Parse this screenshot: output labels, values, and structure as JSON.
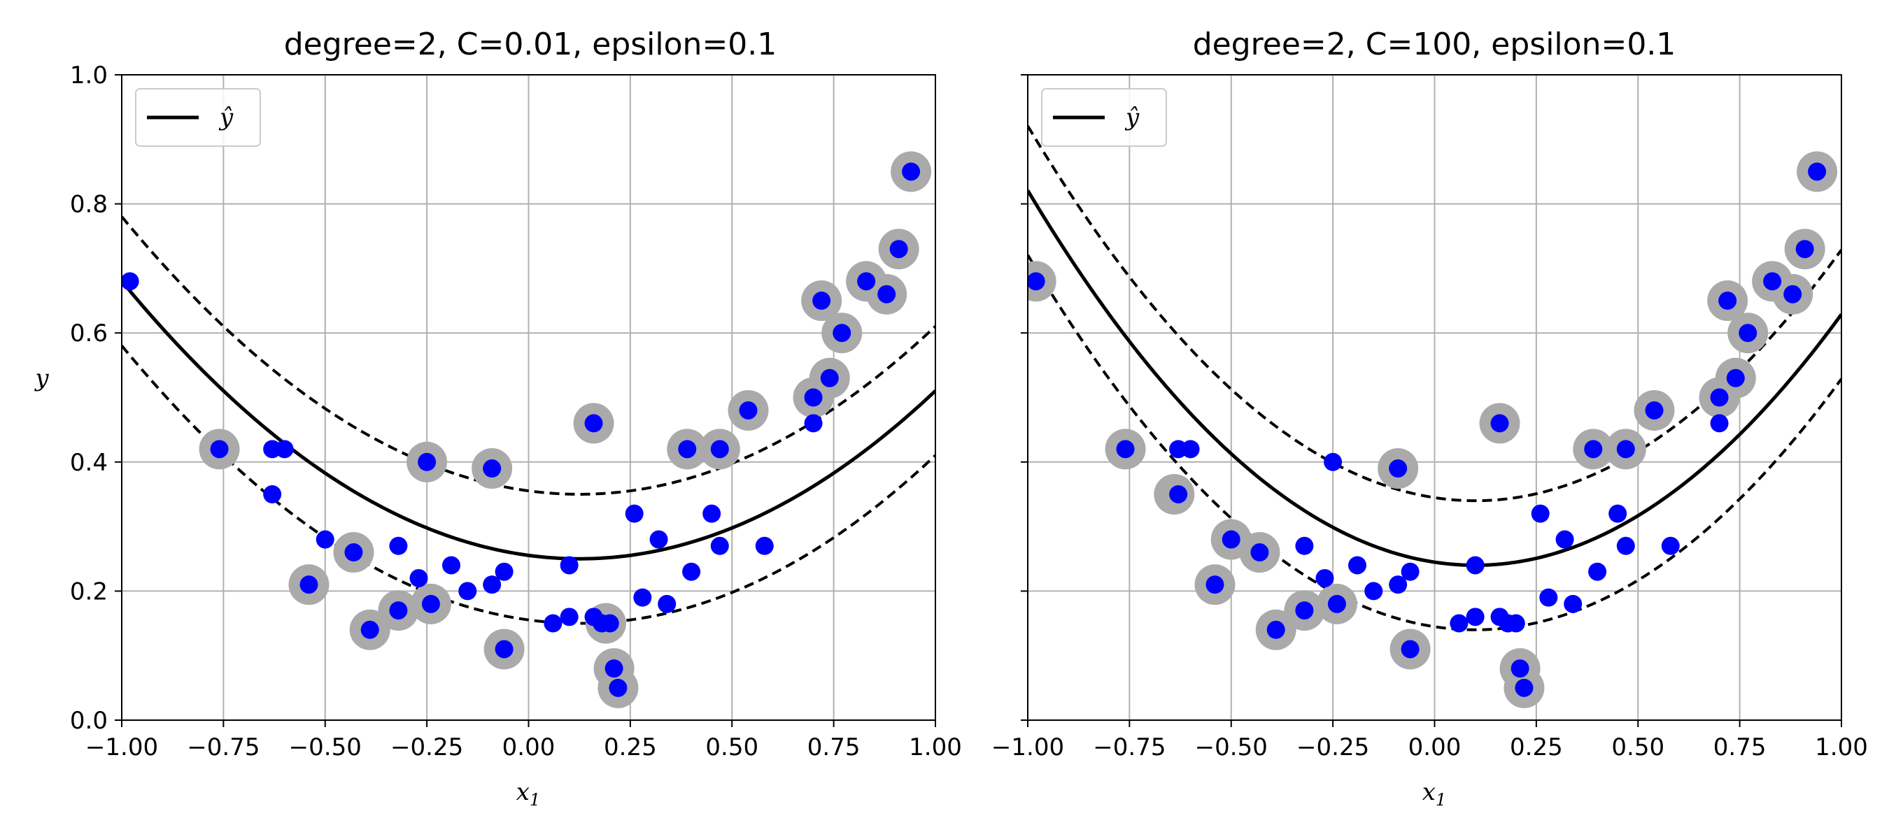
{
  "chart_data": [
    {
      "type": "line",
      "title": "degree=2, C=0.01, epsilon=0.1",
      "xlabel": "x",
      "xlabel_sub": "1",
      "ylabel": "y",
      "xlim": [
        -1.0,
        1.0
      ],
      "ylim": [
        0.0,
        1.0
      ],
      "xticks": [
        -1.0,
        -0.75,
        -0.5,
        -0.25,
        0.0,
        0.25,
        0.5,
        0.75,
        1.0
      ],
      "xtick_labels": [
        "−1.00",
        "−0.75",
        "−0.50",
        "−0.25",
        "0.00",
        "0.25",
        "0.50",
        "0.75",
        "1.00"
      ],
      "yticks": [
        0.0,
        0.2,
        0.4,
        0.6,
        0.8,
        1.0
      ],
      "ytick_labels": [
        "0.0",
        "0.2",
        "0.4",
        "0.6",
        "0.8",
        "1.0"
      ],
      "show_ytick_labels": true,
      "grid": true,
      "legend": {
        "position": "top-left",
        "entries": [
          {
            "label": "ŷ",
            "style": "solid",
            "color": "#000000"
          }
        ]
      },
      "curve": {
        "vertex_x": 0.125,
        "vertex_y": 0.25,
        "a": 0.34,
        "epsilon": 0.1
      },
      "points": [
        {
          "x": -0.98,
          "y": 0.68
        },
        {
          "x": -0.76,
          "y": 0.42
        },
        {
          "x": -0.63,
          "y": 0.42
        },
        {
          "x": -0.6,
          "y": 0.42
        },
        {
          "x": -0.63,
          "y": 0.35
        },
        {
          "x": -0.5,
          "y": 0.28
        },
        {
          "x": -0.43,
          "y": 0.26
        },
        {
          "x": -0.54,
          "y": 0.21
        },
        {
          "x": -0.39,
          "y": 0.14
        },
        {
          "x": -0.32,
          "y": 0.17
        },
        {
          "x": -0.32,
          "y": 0.27
        },
        {
          "x": -0.27,
          "y": 0.22
        },
        {
          "x": -0.25,
          "y": 0.4
        },
        {
          "x": -0.24,
          "y": 0.18
        },
        {
          "x": -0.19,
          "y": 0.24
        },
        {
          "x": -0.15,
          "y": 0.2
        },
        {
          "x": -0.09,
          "y": 0.21
        },
        {
          "x": -0.06,
          "y": 0.23
        },
        {
          "x": -0.09,
          "y": 0.39
        },
        {
          "x": -0.06,
          "y": 0.11
        },
        {
          "x": 0.06,
          "y": 0.15
        },
        {
          "x": 0.1,
          "y": 0.24
        },
        {
          "x": 0.1,
          "y": 0.16
        },
        {
          "x": 0.16,
          "y": 0.16
        },
        {
          "x": 0.16,
          "y": 0.46
        },
        {
          "x": 0.18,
          "y": 0.15
        },
        {
          "x": 0.2,
          "y": 0.15
        },
        {
          "x": 0.21,
          "y": 0.08
        },
        {
          "x": 0.22,
          "y": 0.05
        },
        {
          "x": 0.26,
          "y": 0.32
        },
        {
          "x": 0.28,
          "y": 0.19
        },
        {
          "x": 0.32,
          "y": 0.28
        },
        {
          "x": 0.34,
          "y": 0.18
        },
        {
          "x": 0.39,
          "y": 0.42
        },
        {
          "x": 0.4,
          "y": 0.23
        },
        {
          "x": 0.45,
          "y": 0.32
        },
        {
          "x": 0.47,
          "y": 0.27
        },
        {
          "x": 0.47,
          "y": 0.42
        },
        {
          "x": 0.54,
          "y": 0.48
        },
        {
          "x": 0.58,
          "y": 0.27
        },
        {
          "x": 0.7,
          "y": 0.46
        },
        {
          "x": 0.7,
          "y": 0.5
        },
        {
          "x": 0.72,
          "y": 0.65
        },
        {
          "x": 0.74,
          "y": 0.53
        },
        {
          "x": 0.77,
          "y": 0.6
        },
        {
          "x": 0.83,
          "y": 0.68
        },
        {
          "x": 0.88,
          "y": 0.66
        },
        {
          "x": 0.91,
          "y": 0.73
        },
        {
          "x": 0.94,
          "y": 0.85
        }
      ],
      "support_vectors": [
        {
          "x": -0.76,
          "y": 0.42
        },
        {
          "x": -0.54,
          "y": 0.21
        },
        {
          "x": -0.43,
          "y": 0.26
        },
        {
          "x": -0.39,
          "y": 0.14
        },
        {
          "x": -0.32,
          "y": 0.17
        },
        {
          "x": -0.25,
          "y": 0.4
        },
        {
          "x": -0.24,
          "y": 0.18
        },
        {
          "x": -0.09,
          "y": 0.39
        },
        {
          "x": -0.06,
          "y": 0.11
        },
        {
          "x": 0.16,
          "y": 0.46
        },
        {
          "x": 0.19,
          "y": 0.15
        },
        {
          "x": 0.21,
          "y": 0.08
        },
        {
          "x": 0.22,
          "y": 0.05
        },
        {
          "x": 0.39,
          "y": 0.42
        },
        {
          "x": 0.47,
          "y": 0.42
        },
        {
          "x": 0.54,
          "y": 0.48
        },
        {
          "x": 0.7,
          "y": 0.5
        },
        {
          "x": 0.72,
          "y": 0.65
        },
        {
          "x": 0.74,
          "y": 0.53
        },
        {
          "x": 0.77,
          "y": 0.6
        },
        {
          "x": 0.83,
          "y": 0.68
        },
        {
          "x": 0.88,
          "y": 0.66
        },
        {
          "x": 0.91,
          "y": 0.73
        },
        {
          "x": 0.94,
          "y": 0.85
        }
      ]
    },
    {
      "type": "line",
      "title": "degree=2, C=100, epsilon=0.1",
      "xlabel": "x",
      "xlabel_sub": "1",
      "ylabel": "",
      "xlim": [
        -1.0,
        1.0
      ],
      "ylim": [
        0.0,
        1.0
      ],
      "xticks": [
        -1.0,
        -0.75,
        -0.5,
        -0.25,
        0.0,
        0.25,
        0.5,
        0.75,
        1.0
      ],
      "xtick_labels": [
        "−1.00",
        "−0.75",
        "−0.50",
        "−0.25",
        "0.00",
        "0.25",
        "0.50",
        "0.75",
        "1.00"
      ],
      "yticks": [
        0.0,
        0.2,
        0.4,
        0.6,
        0.8,
        1.0
      ],
      "ytick_labels": [],
      "show_ytick_labels": false,
      "grid": true,
      "legend": {
        "position": "top-left",
        "entries": [
          {
            "label": "ŷ",
            "style": "solid",
            "color": "#000000"
          }
        ]
      },
      "curve": {
        "vertex_x": 0.1,
        "vertex_y": 0.24,
        "a": 0.48,
        "epsilon": 0.1
      },
      "points": [
        {
          "x": -0.98,
          "y": 0.68
        },
        {
          "x": -0.76,
          "y": 0.42
        },
        {
          "x": -0.63,
          "y": 0.42
        },
        {
          "x": -0.6,
          "y": 0.42
        },
        {
          "x": -0.63,
          "y": 0.35
        },
        {
          "x": -0.5,
          "y": 0.28
        },
        {
          "x": -0.43,
          "y": 0.26
        },
        {
          "x": -0.54,
          "y": 0.21
        },
        {
          "x": -0.39,
          "y": 0.14
        },
        {
          "x": -0.32,
          "y": 0.17
        },
        {
          "x": -0.32,
          "y": 0.27
        },
        {
          "x": -0.27,
          "y": 0.22
        },
        {
          "x": -0.25,
          "y": 0.4
        },
        {
          "x": -0.24,
          "y": 0.18
        },
        {
          "x": -0.19,
          "y": 0.24
        },
        {
          "x": -0.15,
          "y": 0.2
        },
        {
          "x": -0.09,
          "y": 0.21
        },
        {
          "x": -0.06,
          "y": 0.23
        },
        {
          "x": -0.09,
          "y": 0.39
        },
        {
          "x": -0.06,
          "y": 0.11
        },
        {
          "x": 0.06,
          "y": 0.15
        },
        {
          "x": 0.1,
          "y": 0.24
        },
        {
          "x": 0.1,
          "y": 0.16
        },
        {
          "x": 0.16,
          "y": 0.16
        },
        {
          "x": 0.16,
          "y": 0.46
        },
        {
          "x": 0.18,
          "y": 0.15
        },
        {
          "x": 0.2,
          "y": 0.15
        },
        {
          "x": 0.21,
          "y": 0.08
        },
        {
          "x": 0.22,
          "y": 0.05
        },
        {
          "x": 0.26,
          "y": 0.32
        },
        {
          "x": 0.28,
          "y": 0.19
        },
        {
          "x": 0.32,
          "y": 0.28
        },
        {
          "x": 0.34,
          "y": 0.18
        },
        {
          "x": 0.39,
          "y": 0.42
        },
        {
          "x": 0.4,
          "y": 0.23
        },
        {
          "x": 0.45,
          "y": 0.32
        },
        {
          "x": 0.47,
          "y": 0.27
        },
        {
          "x": 0.47,
          "y": 0.42
        },
        {
          "x": 0.54,
          "y": 0.48
        },
        {
          "x": 0.58,
          "y": 0.27
        },
        {
          "x": 0.7,
          "y": 0.46
        },
        {
          "x": 0.7,
          "y": 0.5
        },
        {
          "x": 0.72,
          "y": 0.65
        },
        {
          "x": 0.74,
          "y": 0.53
        },
        {
          "x": 0.77,
          "y": 0.6
        },
        {
          "x": 0.83,
          "y": 0.68
        },
        {
          "x": 0.88,
          "y": 0.66
        },
        {
          "x": 0.91,
          "y": 0.73
        },
        {
          "x": 0.94,
          "y": 0.85
        }
      ],
      "support_vectors": [
        {
          "x": -0.98,
          "y": 0.68
        },
        {
          "x": -0.76,
          "y": 0.42
        },
        {
          "x": -0.64,
          "y": 0.35
        },
        {
          "x": -0.54,
          "y": 0.21
        },
        {
          "x": -0.5,
          "y": 0.28
        },
        {
          "x": -0.43,
          "y": 0.26
        },
        {
          "x": -0.39,
          "y": 0.14
        },
        {
          "x": -0.32,
          "y": 0.17
        },
        {
          "x": -0.24,
          "y": 0.18
        },
        {
          "x": -0.09,
          "y": 0.39
        },
        {
          "x": -0.06,
          "y": 0.11
        },
        {
          "x": 0.16,
          "y": 0.46
        },
        {
          "x": 0.21,
          "y": 0.08
        },
        {
          "x": 0.22,
          "y": 0.05
        },
        {
          "x": 0.39,
          "y": 0.42
        },
        {
          "x": 0.47,
          "y": 0.42
        },
        {
          "x": 0.54,
          "y": 0.48
        },
        {
          "x": 0.7,
          "y": 0.5
        },
        {
          "x": 0.72,
          "y": 0.65
        },
        {
          "x": 0.74,
          "y": 0.53
        },
        {
          "x": 0.77,
          "y": 0.6
        },
        {
          "x": 0.83,
          "y": 0.68
        },
        {
          "x": 0.88,
          "y": 0.66
        },
        {
          "x": 0.91,
          "y": 0.73
        },
        {
          "x": 0.94,
          "y": 0.85
        }
      ]
    }
  ],
  "colors": {
    "point": "#0000ff",
    "support_vector": "#aaaaaa",
    "line": "#000000",
    "grid": "#b0b0b0",
    "legend_border": "#cccccc"
  }
}
